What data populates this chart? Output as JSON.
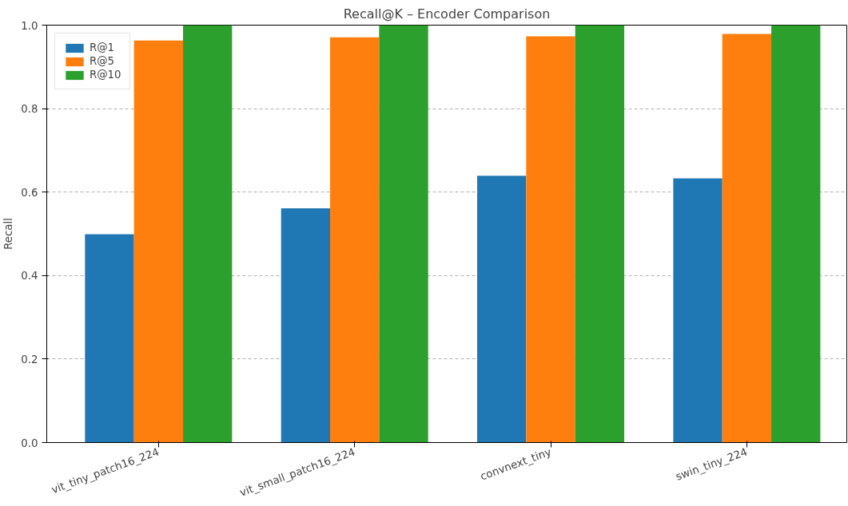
{
  "chart_data": {
    "type": "bar",
    "title": "Recall@K – Encoder Comparison",
    "ylabel": "Recall",
    "categories": [
      "vit_tiny_patch16_224",
      "vit_small_patch16_224",
      "convnext_tiny",
      "swin_tiny_224"
    ],
    "series": [
      {
        "name": "R@1",
        "color": "#1f77b4",
        "values": [
          0.499,
          0.561,
          0.639,
          0.633
        ]
      },
      {
        "name": "R@5",
        "color": "#ff7f0e",
        "values": [
          0.963,
          0.971,
          0.973,
          0.979
        ]
      },
      {
        "name": "R@10",
        "color": "#2ca02c",
        "values": [
          1.0,
          1.0,
          1.0,
          1.0
        ]
      }
    ],
    "ylim": [
      0,
      1.0
    ],
    "yticks": [
      {
        "value": 0,
        "label": "0.0"
      },
      0.2,
      0.4,
      0.6,
      0.8,
      {
        "value": 1,
        "label": "1.0"
      }
    ],
    "grid": "y",
    "legend": "top left"
  }
}
